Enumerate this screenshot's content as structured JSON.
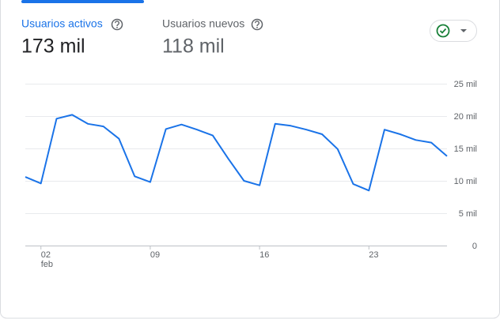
{
  "metrics": [
    {
      "label": "Usuarios activos",
      "value": "173 mil"
    },
    {
      "label": "Usuarios nuevos",
      "value": "118 mil"
    }
  ],
  "chart_data": {
    "type": "line",
    "categories": [
      null,
      "02",
      null,
      null,
      null,
      null,
      null,
      null,
      "09",
      null,
      null,
      null,
      null,
      null,
      null,
      "16",
      null,
      null,
      null,
      null,
      null,
      null,
      "23",
      null,
      null,
      null,
      null,
      null
    ],
    "x_sublabel": "feb",
    "series": [
      {
        "color": "#1a73e8",
        "values": [
          10.6,
          9.6,
          19.6,
          20.2,
          18.8,
          18.4,
          16.5,
          10.7,
          9.8,
          18.0,
          18.7,
          17.9,
          17.0,
          13.4,
          10.0,
          9.3,
          18.8,
          18.5,
          17.9,
          17.2,
          14.9,
          9.5,
          8.5,
          17.9,
          17.2,
          16.3,
          15.9,
          13.8
        ]
      }
    ],
    "ylim": [
      0,
      25
    ],
    "yticks": [
      0,
      {
        "value": 5,
        "label": "5 mil"
      },
      {
        "value": 10,
        "label": "10 mil"
      },
      {
        "value": 15,
        "label": "15 mil"
      },
      {
        "value": 20,
        "label": "20 mil"
      },
      {
        "value": 25,
        "label": "25 mil"
      }
    ],
    "grid": true
  }
}
